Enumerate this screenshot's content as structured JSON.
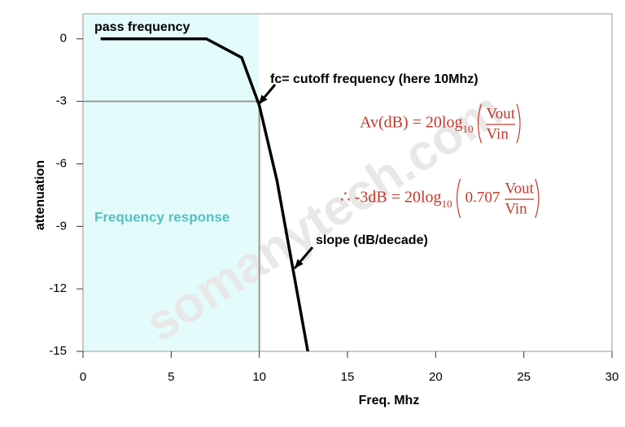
{
  "chart_data": {
    "type": "line",
    "x_label": "Freq. Mhz",
    "y_label": "attenuation",
    "series": [
      {
        "name": "Frequency response",
        "color": "#000000",
        "x": [
          1,
          7,
          9,
          10,
          11,
          12.75
        ],
        "values": [
          0,
          0,
          -0.9,
          -3.2,
          -6.8,
          -15
        ]
      }
    ],
    "cutoff_x": 10,
    "cutoff_y": -3,
    "shade_color": "#e4fbfb",
    "xlim": [
      0,
      30
    ],
    "xticks": [
      0,
      5,
      10,
      15,
      20,
      25,
      30
    ],
    "ylim": [
      -15,
      1.2
    ],
    "yticks": [
      0,
      -3,
      -6,
      -9,
      -12,
      -15
    ],
    "grid": false,
    "annotations": [
      "pass frequency",
      "fc= cutoff frequency (here 10Mhz)",
      "slope (dB/decade)"
    ],
    "formula1": {
      "lhs": "Av(dB) = 20log",
      "sub": "10",
      "num": "Vout",
      "den": "Vin"
    },
    "formula2": {
      "lhs": "∴ -3dB = 20log",
      "sub": "10",
      "coef": "0.707",
      "num": "Vout",
      "den": "Vin"
    },
    "watermark": "somanytech.com"
  }
}
